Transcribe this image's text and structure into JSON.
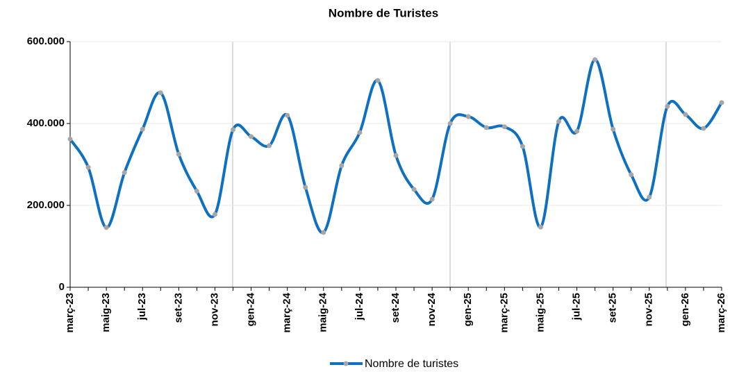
{
  "chart_data": {
    "type": "line",
    "title": "Nombre de Turistes",
    "categories": [
      "març-23",
      null,
      "maig-23",
      null,
      "jul-23",
      null,
      "set-23",
      null,
      "nov-23",
      null,
      "gen-24",
      null,
      "març-24",
      null,
      "maig-24",
      null,
      "jul-24",
      null,
      "set-24",
      null,
      "nov-24",
      null,
      "gen-25",
      null,
      "març-25",
      null,
      "maig-25",
      null,
      "jul-25",
      null,
      "set-25",
      null,
      "nov-25",
      null,
      "gen-26",
      null,
      "març-26"
    ],
    "series": [
      {
        "name": "Nombre de turistes",
        "color": "#0e70c0",
        "marker_color": "#a6a6a6",
        "values": [
          362000,
          293000,
          146000,
          280000,
          386000,
          475000,
          325000,
          235000,
          178000,
          385000,
          368000,
          346000,
          420000,
          244000,
          134000,
          297000,
          378000,
          505000,
          322000,
          239000,
          215000,
          400000,
          417000,
          390000,
          392000,
          344000,
          147000,
          405000,
          381000,
          556000,
          386000,
          275000,
          220000,
          442000,
          422000,
          388000,
          451000
        ]
      }
    ],
    "ylim": [
      0,
      600000
    ],
    "yticks": [
      0,
      {
        "value": 200000,
        "label": "200.000"
      },
      {
        "value": 400000,
        "label": "400.000"
      },
      {
        "value": 600000,
        "label": "600.000"
      }
    ],
    "grid": true,
    "legend": "bottom"
  }
}
